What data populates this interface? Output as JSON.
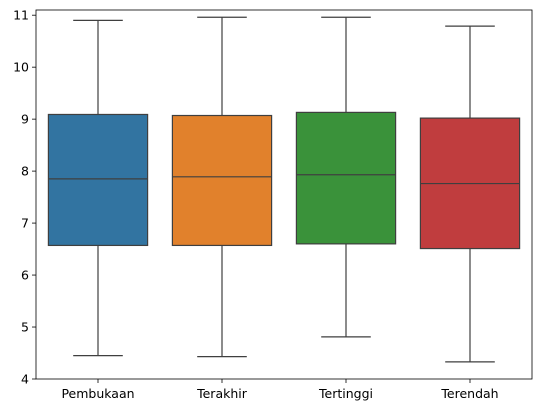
{
  "chart_data": {
    "type": "boxplot",
    "title": "",
    "xlabel": "",
    "ylabel": "",
    "ylim": [
      4,
      11.1
    ],
    "yticks": [
      4,
      5,
      6,
      7,
      8,
      9,
      10,
      11
    ],
    "ytick_labels": [
      "4",
      "5",
      "6",
      "7",
      "8",
      "9",
      "10",
      "11"
    ],
    "grid": false,
    "legend": "none",
    "categories": [
      "Pembukaan",
      "Terakhir",
      "Tertinggi",
      "Terendah"
    ],
    "boxes": [
      {
        "label": "Pembukaan",
        "whisker_low": 4.45,
        "q1": 6.57,
        "median": 7.85,
        "q3": 9.09,
        "whisker_high": 10.9,
        "color": "#3274a1"
      },
      {
        "label": "Terakhir",
        "whisker_low": 4.43,
        "q1": 6.57,
        "median": 7.89,
        "q3": 9.07,
        "whisker_high": 10.96,
        "color": "#e1812c"
      },
      {
        "label": "Tertinggi",
        "whisker_low": 4.81,
        "q1": 6.6,
        "median": 7.93,
        "q3": 9.13,
        "whisker_high": 10.96,
        "color": "#3a923a"
      },
      {
        "label": "Terendah",
        "whisker_low": 4.33,
        "q1": 6.51,
        "median": 7.76,
        "q3": 9.02,
        "whisker_high": 10.79,
        "color": "#c03d3e"
      }
    ]
  }
}
